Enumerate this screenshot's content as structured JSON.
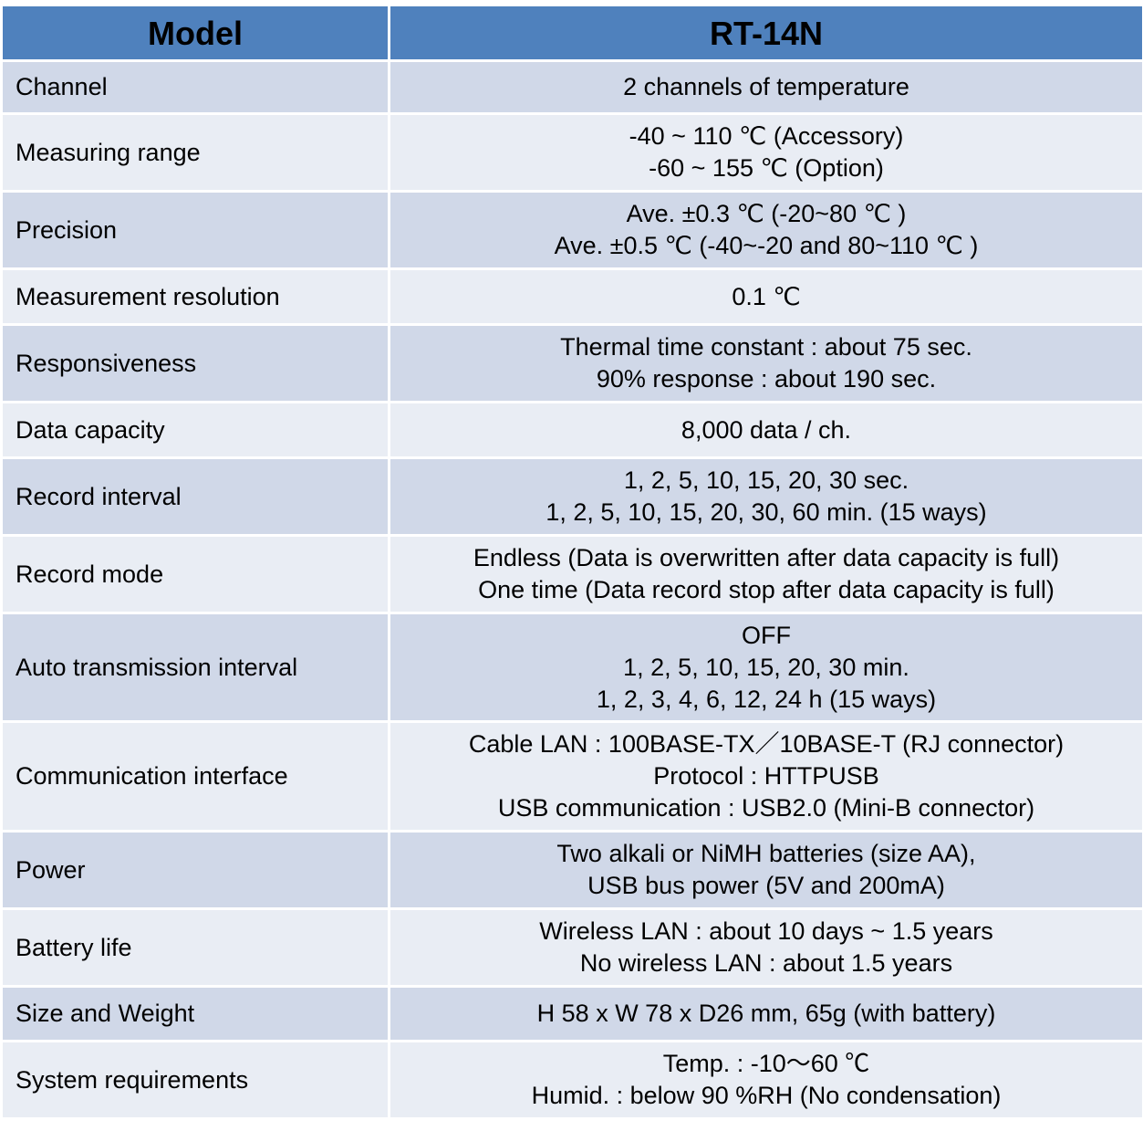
{
  "header": {
    "model_label": "Model",
    "model_value": "RT-14N"
  },
  "rows": [
    {
      "label": "Channel",
      "lines": [
        "2 channels of temperature"
      ]
    },
    {
      "label": "Measuring range",
      "lines": [
        "-40 ~ 110 ℃ (Accessory)",
        "-60 ~ 155 ℃ (Option)"
      ]
    },
    {
      "label": "Precision",
      "lines": [
        "Ave. ±0.3 ℃ (-20~80 ℃ )",
        "Ave. ±0.5 ℃ (-40~-20 and 80~110 ℃ )"
      ]
    },
    {
      "label": "Measurement resolution",
      "lines": [
        "0.1 ℃"
      ]
    },
    {
      "label": "Responsiveness",
      "lines": [
        "Thermal time constant : about 75 sec.",
        "90% response : about 190 sec."
      ]
    },
    {
      "label": "Data capacity",
      "lines": [
        "8,000 data / ch."
      ]
    },
    {
      "label": "Record interval",
      "lines": [
        "1, 2, 5, 10, 15, 20, 30 sec.",
        "1, 2, 5, 10, 15, 20, 30, 60 min. (15 ways)"
      ]
    },
    {
      "label": "Record mode",
      "lines": [
        "Endless (Data is overwritten after data capacity is full)",
        "One time (Data record stop after data capacity is full)"
      ]
    },
    {
      "label": "Auto transmission interval",
      "lines": [
        "OFF",
        "1, 2, 5, 10, 15, 20, 30 min.",
        "1, 2, 3, 4, 6, 12, 24 h (15 ways)"
      ]
    },
    {
      "label": "Communication interface",
      "lines": [
        "Cable LAN : 100BASE-TX／10BASE-T (RJ connector)",
        "Protocol : HTTPUSB",
        "USB communication : USB2.0 (Mini-B connector)"
      ]
    },
    {
      "label": "Power",
      "lines": [
        "Two alkali or NiMH batteries (size AA),",
        "USB bus power (5V and 200mA)"
      ]
    },
    {
      "label": "Battery life",
      "lines": [
        "Wireless LAN : about 10 days ~ 1.5 years",
        "No wireless LAN : about 1.5 years"
      ]
    },
    {
      "label": "Size and Weight",
      "lines": [
        "H 58 x W 78 x D26 mm, 65g (with battery)"
      ]
    },
    {
      "label": "System requirements",
      "lines": [
        "Temp. : -10～60 ℃",
        "Humid. : below 90 %RH (No condensation)"
      ]
    }
  ]
}
